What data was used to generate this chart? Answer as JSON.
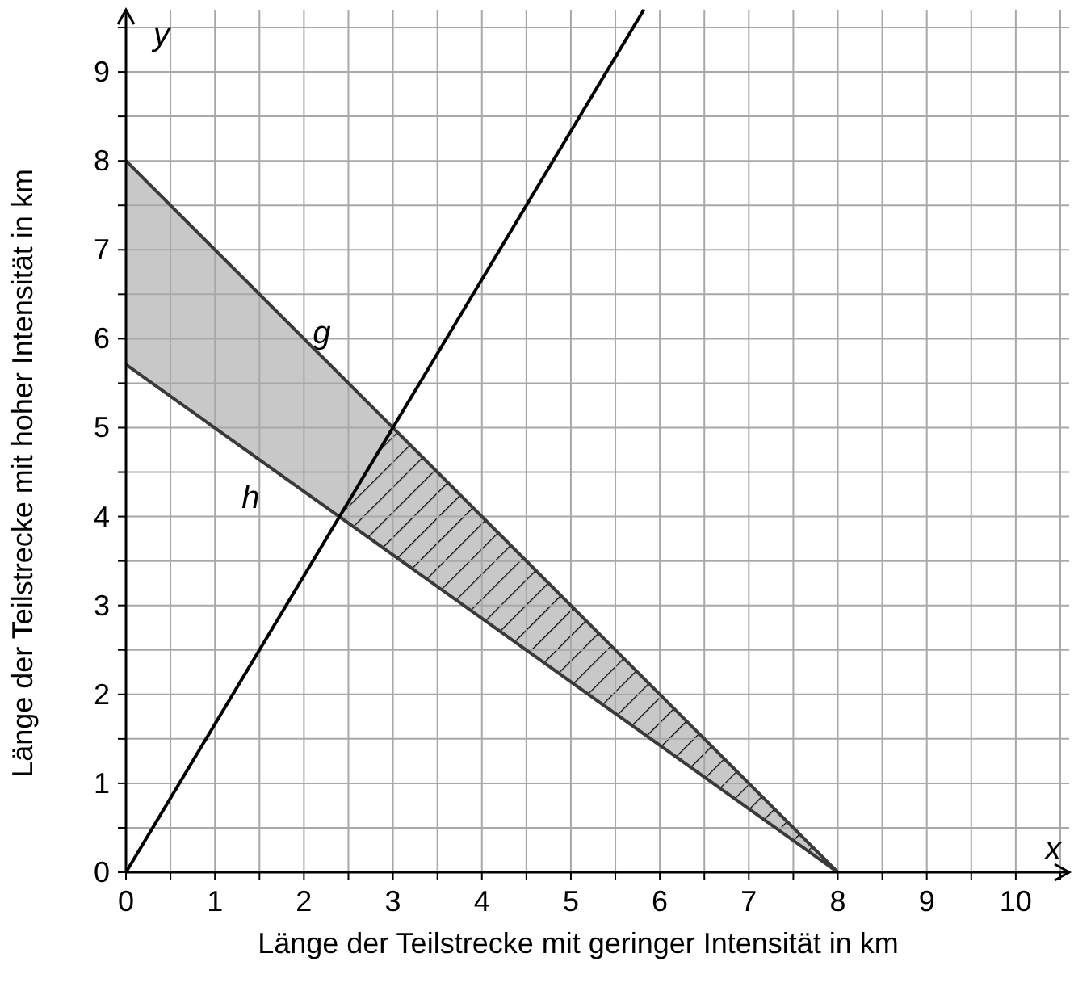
{
  "chart_data": {
    "type": "line",
    "xlabel": "Länge der Teilstrecke mit geringer Intensität in km",
    "ylabel": "Länge der Teilstrecke mit hoher Intensität in km",
    "xlim": [
      0,
      10.6
    ],
    "ylim": [
      0,
      9.7
    ],
    "xticks": [
      0,
      {
        "value": 0.5,
        "label": null
      },
      1,
      {
        "value": 1.5,
        "label": null
      },
      2,
      {
        "value": 2.5,
        "label": null
      },
      3,
      {
        "value": 3.5,
        "label": null
      },
      4,
      {
        "value": 4.5,
        "label": null
      },
      5,
      {
        "value": 5.5,
        "label": null
      },
      6,
      {
        "value": 6.5,
        "label": null
      },
      7,
      {
        "value": 7.5,
        "label": null
      },
      8,
      {
        "value": 8.5,
        "label": null
      },
      9,
      {
        "value": 9.5,
        "label": null
      },
      10,
      {
        "value": 10.5,
        "label": null
      }
    ],
    "yticks": [
      0,
      {
        "value": 0.5,
        "label": null
      },
      1,
      {
        "value": 1.5,
        "label": null
      },
      2,
      {
        "value": 2.5,
        "label": null
      },
      3,
      {
        "value": 3.5,
        "label": null
      },
      4,
      {
        "value": 4.5,
        "label": null
      },
      5,
      {
        "value": 5.5,
        "label": null
      },
      6,
      {
        "value": 6.5,
        "label": null
      },
      7,
      {
        "value": 7.5,
        "label": null
      },
      8,
      {
        "value": 8.5,
        "label": null
      },
      9,
      {
        "value": 9.5,
        "label": null
      }
    ],
    "grid": true,
    "line_style": "solid",
    "series": [
      {
        "name": "g",
        "color": "#3a3a3a",
        "x": [
          0,
          8
        ],
        "values": [
          8,
          0
        ],
        "lower": [
          5.71,
          0
        ],
        "upper": [
          8,
          0
        ]
      },
      {
        "name": "h",
        "color": "#3a3a3a",
        "x": [
          0,
          8
        ],
        "values": [
          5.71,
          0
        ]
      },
      {
        "color": "#000000",
        "x": [
          0,
          5.82
        ],
        "values": [
          0,
          9.7
        ]
      }
    ],
    "annotations": [
      "x",
      "y"
    ]
  }
}
